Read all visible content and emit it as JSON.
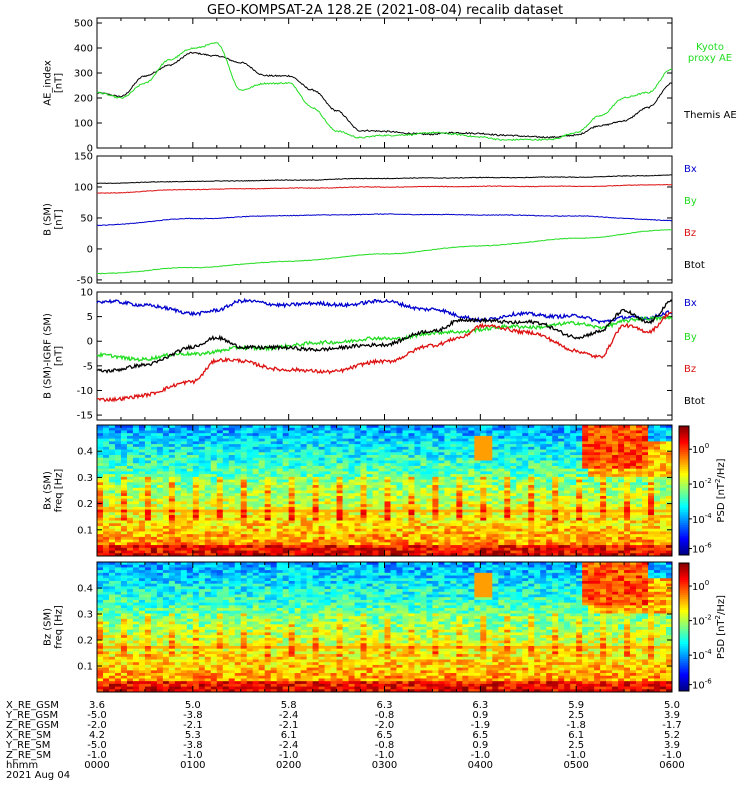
{
  "title": "GEO-KOMPSAT-2A 128.2E (2021-08-04) recalib dataset",
  "colors": {
    "black": "#000000",
    "red": "#dd1111",
    "blue": "#0000cc",
    "green": "#22dd22"
  },
  "chart_data": [
    {
      "id": "ae",
      "type": "line",
      "ylabel": "AE_index [nT]",
      "ylim": [
        0,
        520
      ],
      "yticks": [
        0,
        100,
        200,
        300,
        400,
        500
      ],
      "x": [
        0,
        0.25,
        0.5,
        0.75,
        1.0,
        1.25,
        1.5,
        1.75,
        2.0,
        2.25,
        2.5,
        2.75,
        3.0,
        3.25,
        3.5,
        3.75,
        4.0,
        4.25,
        4.5,
        4.75,
        5.0,
        5.25,
        5.5,
        5.75,
        6.0
      ],
      "series": [
        {
          "name": "Themis AE",
          "color": "black",
          "values": [
            220,
            205,
            290,
            330,
            380,
            370,
            340,
            290,
            290,
            230,
            150,
            70,
            65,
            60,
            55,
            60,
            60,
            50,
            45,
            45,
            50,
            90,
            110,
            160,
            260
          ]
        },
        {
          "name": "Kyoto proxy AE",
          "color": "green",
          "values": [
            220,
            200,
            260,
            350,
            400,
            420,
            230,
            260,
            260,
            160,
            70,
            40,
            50,
            55,
            60,
            55,
            45,
            30,
            35,
            35,
            60,
            130,
            200,
            220,
            320
          ]
        }
      ]
    },
    {
      "id": "b",
      "type": "line",
      "ylabel": "B (SM) [nT]",
      "ylim": [
        -55,
        150
      ],
      "yticks": [
        -50,
        0,
        50,
        100,
        150
      ],
      "x": [
        0,
        1,
        2,
        3,
        4,
        5,
        6
      ],
      "series": [
        {
          "name": "Bx",
          "color": "blue",
          "values": [
            38,
            49,
            54,
            56,
            55,
            53,
            46
          ]
        },
        {
          "name": "By",
          "color": "green",
          "values": [
            -40,
            -30,
            -20,
            -8,
            5,
            17,
            31
          ]
        },
        {
          "name": "Bz",
          "color": "red",
          "values": [
            90,
            96,
            98,
            100,
            101,
            101,
            104
          ]
        },
        {
          "name": "Btot",
          "color": "black",
          "values": [
            106,
            109,
            111,
            114,
            115,
            116,
            119
          ]
        }
      ]
    },
    {
      "id": "db",
      "type": "line",
      "ylabel": "B (SM)-IGRF (SM) [nT]",
      "ylim": [
        -16,
        10
      ],
      "yticks": [
        -15,
        -10,
        -5,
        0,
        5,
        10
      ],
      "x": [
        0,
        0.5,
        1.0,
        1.25,
        1.5,
        2.0,
        2.5,
        3.0,
        3.5,
        3.8,
        4.0,
        4.5,
        5.0,
        5.25,
        5.5,
        5.75,
        6.0
      ],
      "series": [
        {
          "name": "Bx",
          "color": "blue",
          "values": [
            8,
            7.5,
            5.5,
            6.5,
            8,
            7.5,
            7.5,
            8,
            6.5,
            5,
            4.5,
            5.5,
            5,
            4,
            5,
            4.5,
            6
          ]
        },
        {
          "name": "By",
          "color": "green",
          "values": [
            -3,
            -3.5,
            -2.5,
            -2,
            -1.5,
            -1,
            0,
            0.5,
            1.5,
            2,
            2.5,
            3,
            3.5,
            3,
            4,
            4.5,
            5
          ]
        },
        {
          "name": "Bz",
          "color": "red",
          "values": [
            -12,
            -11,
            -8,
            -4,
            -4,
            -6,
            -6,
            -4,
            -1,
            1,
            3,
            2,
            -2,
            -3,
            3,
            2,
            6
          ]
        },
        {
          "name": "Btot",
          "color": "black",
          "values": [
            -6,
            -5,
            -1,
            0.5,
            -1,
            -1.5,
            -1.5,
            -0.5,
            2,
            4.5,
            4,
            4,
            1,
            2,
            6,
            4,
            8
          ]
        }
      ]
    },
    {
      "id": "spec_bx",
      "type": "heatmap",
      "ylabel": "Bx (SM) freq [Hz]",
      "ylim": [
        0,
        0.5
      ],
      "yticks": [
        0.1,
        0.2,
        0.3,
        0.4
      ],
      "colorbar": {
        "label": "PSD [nT^2/Hz]",
        "ticks": [
          "10^0",
          "10^-2",
          "10^-4",
          "10^-6"
        ]
      }
    },
    {
      "id": "spec_bz",
      "type": "heatmap",
      "ylabel": "Bz (SM) freq [Hz]",
      "ylim": [
        0,
        0.5
      ],
      "yticks": [
        0.1,
        0.2,
        0.3,
        0.4
      ],
      "colorbar": {
        "label": "PSD [nT^2/Hz]",
        "ticks": [
          "10^0",
          "10^-2",
          "10^-4",
          "10^-6"
        ]
      }
    }
  ],
  "ephemeris": {
    "rows": [
      {
        "label": "X_RE_GSM",
        "values": [
          "3.6",
          "5.0",
          "5.8",
          "6.3",
          "6.3",
          "5.9",
          "5.0"
        ]
      },
      {
        "label": "Y_RE_GSM",
        "values": [
          "-5.0",
          "-3.8",
          "-2.4",
          "-0.8",
          "0.9",
          "2.5",
          "3.9"
        ]
      },
      {
        "label": "Z_RE_GSM",
        "values": [
          "-2.0",
          "-2.1",
          "-2.1",
          "-2.0",
          "-1.9",
          "-1.8",
          "-1.7"
        ]
      },
      {
        "label": "X_RE_SM",
        "values": [
          "4.2",
          "5.3",
          "6.1",
          "6.5",
          "6.5",
          "6.1",
          "5.2"
        ]
      },
      {
        "label": "Y_RE_SM",
        "values": [
          "-5.0",
          "-3.8",
          "-2.4",
          "-0.8",
          "0.9",
          "2.5",
          "3.9"
        ]
      },
      {
        "label": "Z_RE_SM",
        "values": [
          "-1.0",
          "-1.0",
          "-1.0",
          "-1.0",
          "-1.0",
          "-1.0",
          "-1.0"
        ]
      },
      {
        "label": "hhmm",
        "values": [
          "0000",
          "0100",
          "0200",
          "0300",
          "0400",
          "0500",
          "0600"
        ]
      }
    ],
    "date": "2021 Aug 04"
  }
}
